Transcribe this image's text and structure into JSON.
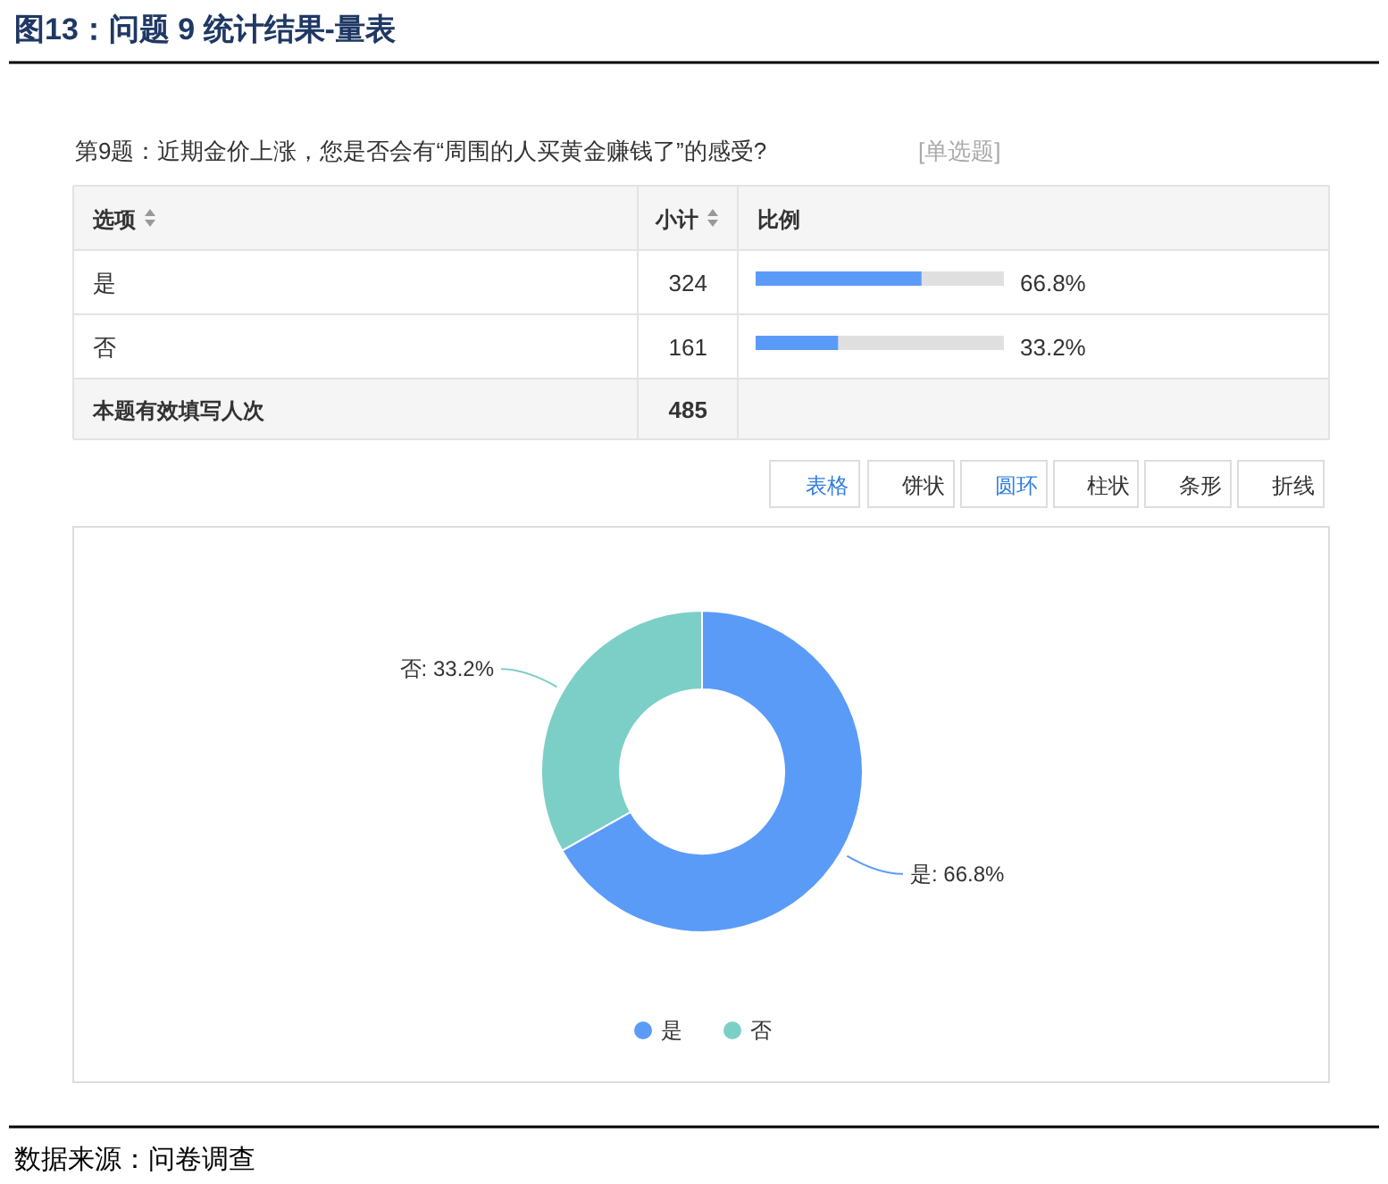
{
  "chart_data": {
    "type": "donut",
    "title": "图13：问题 9 统计结果-量表",
    "subtitle": "第9题：近期金价上涨，您是否会有“周围的人买黄金赚钱了”的感受?",
    "categories": [
      "是",
      "否"
    ],
    "values": [
      66.8,
      33.2
    ],
    "colors": [
      "#5b9bf8",
      "#7ccfc7"
    ],
    "value_labels": [
      "是: 66.8%",
      "否: 33.2%"
    ],
    "legend": "bottom",
    "annotations": [
      "[单选题]",
      "选项",
      "小计",
      "比例",
      "324",
      "66.8%",
      "161",
      "33.2%",
      "本题有效填写人次",
      "485",
      "表格",
      "饼状",
      "圆环",
      "柱状",
      "条形",
      "折线",
      "数据来源：问卷调查"
    ]
  }
}
